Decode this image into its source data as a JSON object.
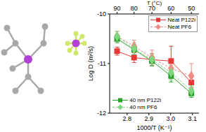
{
  "chart_data": {
    "type": "scatter",
    "xlabel": "1000/T (K⁻¹)",
    "ylabel": "Log D (m²/s)",
    "x2label": "T (°C)",
    "x": [
      2.754,
      2.832,
      2.914,
      3.002,
      3.095
    ],
    "xlim": [
      2.72,
      3.13
    ],
    "xticks": [
      2.8,
      2.9,
      {
        "value": 3.0,
        "label": "3.0"
      },
      3.1
    ],
    "x2ticks": [
      {
        "value": 2.754,
        "label": "90"
      },
      {
        "value": 2.832,
        "label": "80"
      },
      {
        "value": 2.914,
        "label": "70"
      },
      {
        "value": 3.002,
        "label": "60"
      },
      {
        "value": 3.095,
        "label": "50"
      }
    ],
    "ylim": [
      -12,
      -10
    ],
    "yticks": [
      -12,
      -11,
      -10
    ],
    "series": [
      {
        "name": "Neat P122i",
        "color": "#e53935",
        "marker": "square",
        "line_style": "solid",
        "legend": "upper right",
        "values": [
          -10.75,
          -10.88,
          -10.92,
          -10.95,
          -11.38
        ],
        "errors": [
          0.08,
          0.1,
          0.12,
          0.3,
          0.1
        ]
      },
      {
        "name": "Neat PF6",
        "color": "#f08a84",
        "marker": "diamond",
        "line_style": "dashed",
        "legend": "upper right",
        "values": [
          -10.45,
          -10.65,
          -10.88,
          -11.1,
          -11.25
        ],
        "errors": [
          0.1,
          0.12,
          0.15,
          0.2,
          0.25
        ]
      },
      {
        "name": "40 nm P122i",
        "color": "#2ca02c",
        "marker": "square",
        "line_style": "solid",
        "legend": "lower left",
        "values": [
          -10.5,
          -10.72,
          -10.95,
          -11.25,
          -11.6
        ],
        "errors": [
          0.08,
          0.1,
          0.1,
          0.12,
          0.08
        ]
      },
      {
        "name": "40 nm PF6",
        "color": "#7fd67f",
        "marker": "diamond",
        "line_style": "dashed",
        "legend": "lower left",
        "values": [
          -10.45,
          -10.7,
          -10.92,
          -11.18,
          -11.55
        ],
        "errors": [
          0.1,
          0.12,
          0.12,
          0.15,
          0.1
        ]
      }
    ]
  }
}
